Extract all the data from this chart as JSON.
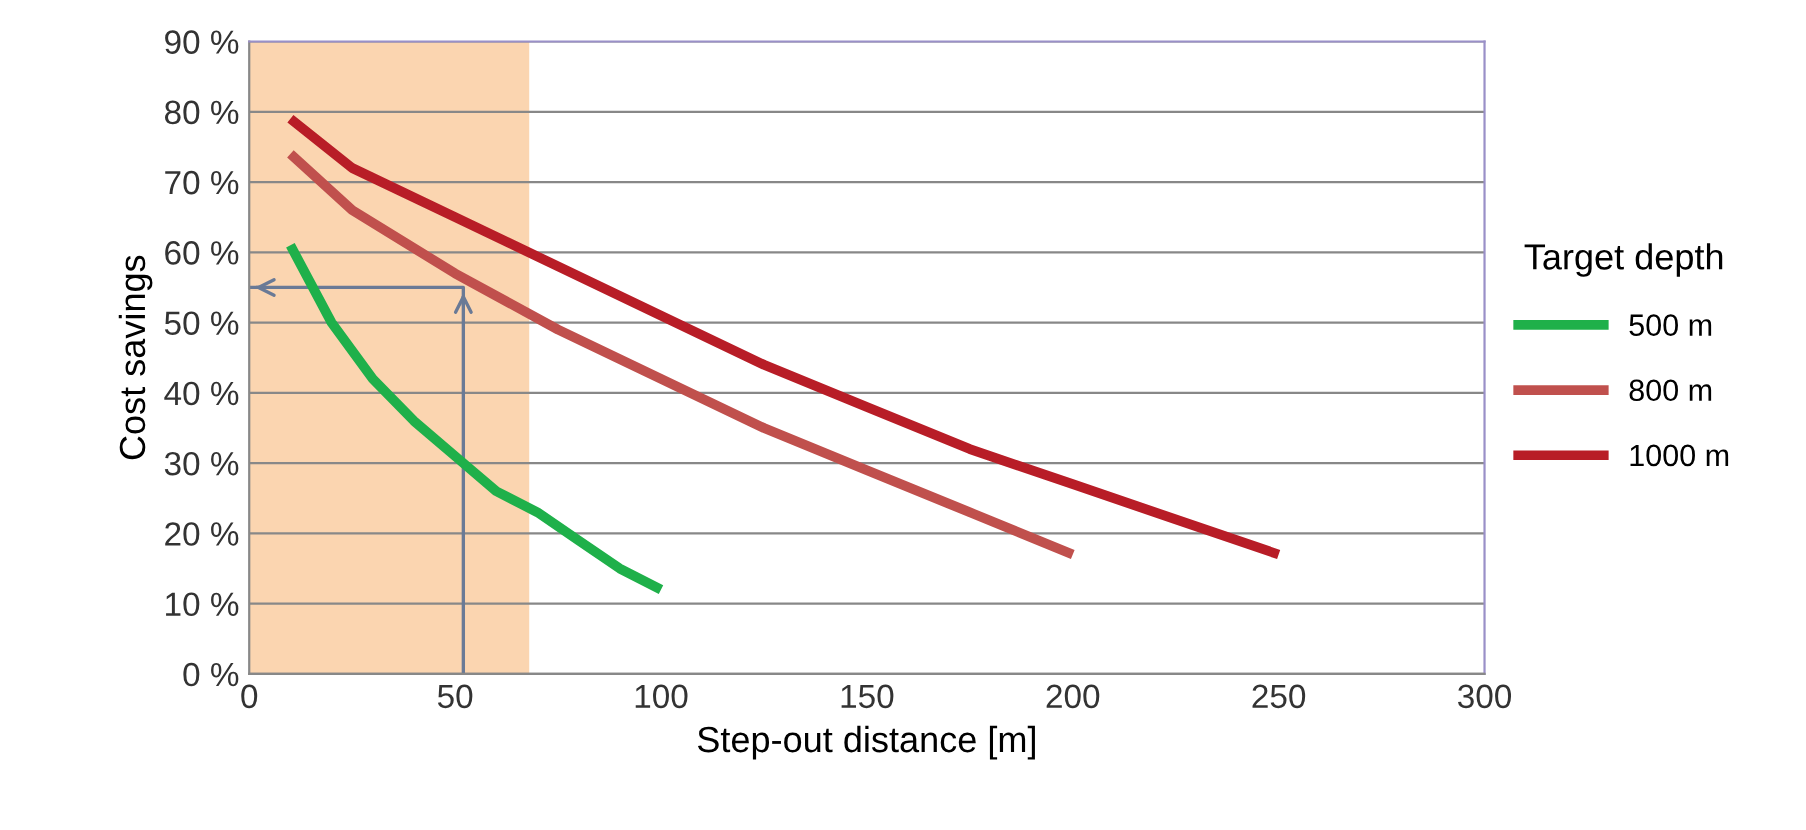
{
  "chart_data": {
    "type": "line",
    "xlabel": "Step-out distance [m]",
    "ylabel": "Cost savings",
    "legend_title": "Target depth",
    "xlim": [
      0,
      300
    ],
    "xticks": [
      0,
      50,
      100,
      150,
      200,
      250,
      300
    ],
    "ylim": [
      0,
      90
    ],
    "yticks": [
      {
        "value": 0,
        "label": "0 %"
      },
      {
        "value": 10,
        "label": "10 %"
      },
      {
        "value": 20,
        "label": "20 %"
      },
      {
        "value": 30,
        "label": "30 %"
      },
      {
        "value": 40,
        "label": "40 %"
      },
      {
        "value": 50,
        "label": "50 %"
      },
      {
        "value": 60,
        "label": "60 %"
      },
      {
        "value": 70,
        "label": "70 %"
      },
      {
        "value": 80,
        "label": "80 %"
      },
      {
        "value": 90,
        "label": "90 %"
      }
    ],
    "grid": "y",
    "legend": "right",
    "marker": "none",
    "line_style": "solid",
    "bands": [
      {
        "axis": "x",
        "from": 0,
        "to": 68,
        "color": "#fbd5b0"
      }
    ],
    "series": [
      {
        "color": "#6a7a96",
        "x": [
          52,
          52,
          0
        ],
        "values": [
          0,
          55,
          55
        ]
      },
      {
        "name": "500 m",
        "color": "#1fb04a",
        "x": [
          10,
          20,
          30,
          40,
          50,
          60,
          70,
          80,
          90,
          100
        ],
        "values": [
          61,
          50,
          42,
          36,
          31,
          26,
          23,
          19,
          15,
          12
        ]
      },
      {
        "name": "800 m",
        "color": "#c0504d",
        "x": [
          10,
          25,
          50,
          75,
          100,
          125,
          150,
          175,
          200
        ],
        "values": [
          74,
          66,
          57,
          49,
          42,
          35,
          29,
          23,
          17
        ]
      },
      {
        "name": "1000 m",
        "color": "#b81d27",
        "x": [
          10,
          25,
          50,
          75,
          100,
          125,
          150,
          175,
          200,
          225,
          250
        ],
        "values": [
          79,
          72,
          65,
          58,
          51,
          44,
          38,
          32,
          27,
          22,
          17
        ]
      }
    ]
  }
}
